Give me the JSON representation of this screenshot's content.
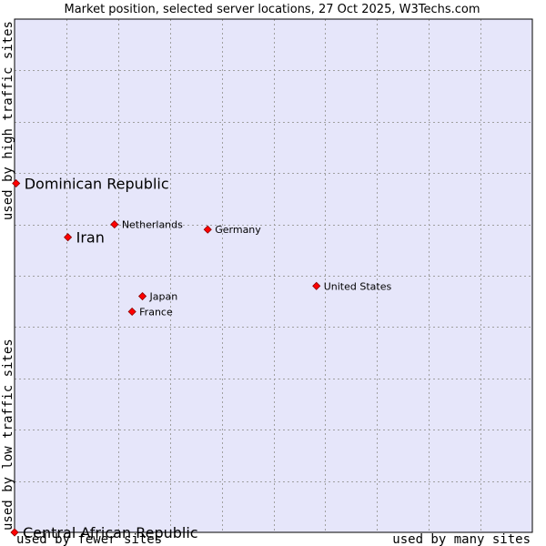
{
  "chart_data": {
    "type": "scatter",
    "title": "Market position, selected server locations, 27 Oct 2025, W3Techs.com",
    "xlabel_left": "used by fewer sites",
    "xlabel_right": "used by many sites",
    "ylabel_top": "used by high traffic sites",
    "ylabel_bottom": "used by low traffic sites",
    "xlim": [
      0,
      10
    ],
    "ylim": [
      0,
      10
    ],
    "grid": true,
    "colors": {
      "plot_background": "#e6e6fa",
      "grid": "#a0a0a0",
      "point": "#ff0000",
      "point_outline": "#8b0000",
      "frame": "#000000"
    },
    "points": [
      {
        "label": "Dominican Republic",
        "x": 0.03,
        "y": 6.8,
        "emphasis": true
      },
      {
        "label": "Iran",
        "x": 1.03,
        "y": 5.75,
        "emphasis": true
      },
      {
        "label": "Netherlands",
        "x": 1.93,
        "y": 6.0,
        "emphasis": false
      },
      {
        "label": "Germany",
        "x": 3.73,
        "y": 5.9,
        "emphasis": false
      },
      {
        "label": "United States",
        "x": 5.83,
        "y": 4.8,
        "emphasis": false
      },
      {
        "label": "Japan",
        "x": 2.47,
        "y": 4.6,
        "emphasis": false
      },
      {
        "label": "France",
        "x": 2.27,
        "y": 4.3,
        "emphasis": false
      },
      {
        "label": "Central African Republic",
        "x": 0.0,
        "y": 0.0,
        "emphasis": true
      }
    ]
  }
}
